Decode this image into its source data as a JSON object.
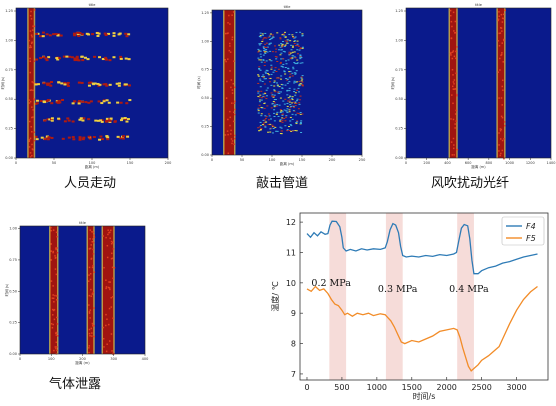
{
  "captions": [
    "人员走动",
    "敲击管道",
    "风吹扰动光纤",
    "气体泄露"
  ],
  "heatmap_panels": [
    {
      "id": "walking",
      "title": "title",
      "ylabel": "时间 (s)",
      "xlabel": "距离 (m)",
      "y_ticks": [
        "0.00",
        "0.25",
        "0.50",
        "0.75",
        "1.00",
        "1.25"
      ],
      "x_ticks": [
        "0",
        "50",
        "100",
        "150",
        "200"
      ],
      "vertical_bands": [
        [
          0.08,
          0.12
        ]
      ],
      "horizontal_events": [
        0.17,
        0.33,
        0.5,
        0.62,
        0.74,
        0.86
      ]
    },
    {
      "id": "knocking",
      "title": "title",
      "ylabel": "时间 (s)",
      "xlabel": "距离 (m)",
      "y_ticks": [
        "0.00",
        "0.25",
        "0.50",
        "0.75",
        "1.00",
        "1.25"
      ],
      "x_ticks": [
        "0",
        "50",
        "100",
        "150",
        "200",
        "250"
      ],
      "vertical_bands": [
        [
          0.08,
          0.15
        ]
      ],
      "noise_region": [
        0.3,
        0.6,
        0.15,
        0.85
      ]
    },
    {
      "id": "wind",
      "title": "title",
      "ylabel": "时间 (s)",
      "xlabel": "距离 (m)",
      "y_ticks": [
        "0.00",
        "0.25",
        "0.50",
        "0.75",
        "1.00",
        "1.25"
      ],
      "x_ticks": [
        "0",
        "200",
        "400",
        "600",
        "800",
        "1000",
        "1200",
        "1400"
      ],
      "vertical_bands": [
        [
          0.3,
          0.35
        ],
        [
          0.63,
          0.68
        ]
      ]
    },
    {
      "id": "leak",
      "title": "title",
      "ylabel": "时间 (s)",
      "xlabel": "距离 (m)",
      "y_ticks": [
        "0.00",
        "0.25",
        "0.50",
        "0.75",
        "1.00"
      ],
      "x_ticks": [
        "0",
        "100",
        "200",
        "300",
        "400"
      ],
      "vertical_bands": [
        [
          0.24,
          0.3
        ],
        [
          0.54,
          0.59
        ],
        [
          0.66,
          0.75
        ]
      ]
    }
  ],
  "chart_data": {
    "type": "line",
    "title": "",
    "xlabel": "时间/s",
    "ylabel": "温度/ ℃",
    "xlim": [
      -100,
      3450
    ],
    "ylim": [
      6.8,
      12.3
    ],
    "x_ticks": [
      0,
      500,
      1000,
      1500,
      2000,
      2500,
      3000
    ],
    "y_ticks": [
      7,
      8,
      9,
      10,
      11,
      12
    ],
    "legend_position": "top-right",
    "shaded_regions": [
      {
        "x0": 320,
        "x1": 560,
        "label": "0.2 MPa"
      },
      {
        "x0": 1130,
        "x1": 1370,
        "label": "0.3 MPa"
      },
      {
        "x0": 2150,
        "x1": 2390,
        "label": "0.4 MPa"
      }
    ],
    "series": [
      {
        "name": "F4",
        "color": "#2E7BB6",
        "points": [
          [
            0,
            11.62
          ],
          [
            50,
            11.5
          ],
          [
            100,
            11.65
          ],
          [
            150,
            11.55
          ],
          [
            200,
            11.68
          ],
          [
            260,
            11.6
          ],
          [
            300,
            11.62
          ],
          [
            330,
            11.9
          ],
          [
            360,
            12.03
          ],
          [
            420,
            12.02
          ],
          [
            470,
            11.85
          ],
          [
            500,
            11.5
          ],
          [
            520,
            11.15
          ],
          [
            560,
            11.05
          ],
          [
            620,
            11.1
          ],
          [
            700,
            11.05
          ],
          [
            780,
            11.12
          ],
          [
            860,
            11.08
          ],
          [
            950,
            11.12
          ],
          [
            1050,
            11.1
          ],
          [
            1120,
            11.15
          ],
          [
            1150,
            11.35
          ],
          [
            1190,
            11.75
          ],
          [
            1230,
            11.95
          ],
          [
            1270,
            11.9
          ],
          [
            1310,
            11.65
          ],
          [
            1340,
            11.2
          ],
          [
            1370,
            10.9
          ],
          [
            1420,
            10.85
          ],
          [
            1500,
            10.88
          ],
          [
            1600,
            10.85
          ],
          [
            1700,
            10.9
          ],
          [
            1800,
            10.87
          ],
          [
            1900,
            10.93
          ],
          [
            2000,
            10.9
          ],
          [
            2100,
            10.95
          ],
          [
            2140,
            11.0
          ],
          [
            2170,
            11.35
          ],
          [
            2210,
            11.8
          ],
          [
            2250,
            11.92
          ],
          [
            2300,
            11.88
          ],
          [
            2330,
            11.45
          ],
          [
            2360,
            10.75
          ],
          [
            2390,
            10.3
          ],
          [
            2450,
            10.3
          ],
          [
            2500,
            10.4
          ],
          [
            2600,
            10.5
          ],
          [
            2700,
            10.55
          ],
          [
            2800,
            10.65
          ],
          [
            2900,
            10.7
          ],
          [
            3000,
            10.78
          ],
          [
            3100,
            10.85
          ],
          [
            3200,
            10.9
          ],
          [
            3300,
            10.95
          ]
        ]
      },
      {
        "name": "F5",
        "color": "#F28C28",
        "points": [
          [
            0,
            9.8
          ],
          [
            60,
            9.72
          ],
          [
            120,
            9.88
          ],
          [
            180,
            9.75
          ],
          [
            240,
            9.8
          ],
          [
            300,
            9.65
          ],
          [
            350,
            9.45
          ],
          [
            400,
            9.3
          ],
          [
            450,
            9.25
          ],
          [
            500,
            9.1
          ],
          [
            540,
            8.95
          ],
          [
            580,
            9.0
          ],
          [
            650,
            8.9
          ],
          [
            720,
            9.0
          ],
          [
            800,
            8.95
          ],
          [
            880,
            9.0
          ],
          [
            950,
            8.92
          ],
          [
            1050,
            8.98
          ],
          [
            1120,
            8.95
          ],
          [
            1160,
            8.85
          ],
          [
            1200,
            8.75
          ],
          [
            1250,
            8.55
          ],
          [
            1300,
            8.3
          ],
          [
            1350,
            8.05
          ],
          [
            1400,
            8.0
          ],
          [
            1500,
            8.1
          ],
          [
            1600,
            8.05
          ],
          [
            1700,
            8.15
          ],
          [
            1800,
            8.25
          ],
          [
            1900,
            8.4
          ],
          [
            2000,
            8.45
          ],
          [
            2100,
            8.5
          ],
          [
            2150,
            8.45
          ],
          [
            2190,
            8.2
          ],
          [
            2230,
            7.85
          ],
          [
            2270,
            7.55
          ],
          [
            2310,
            7.25
          ],
          [
            2350,
            7.1
          ],
          [
            2400,
            7.2
          ],
          [
            2450,
            7.3
          ],
          [
            2500,
            7.45
          ],
          [
            2600,
            7.6
          ],
          [
            2700,
            7.8
          ],
          [
            2750,
            7.9
          ],
          [
            2800,
            8.15
          ],
          [
            2900,
            8.65
          ],
          [
            3000,
            9.1
          ],
          [
            3100,
            9.45
          ],
          [
            3200,
            9.7
          ],
          [
            3300,
            9.88
          ]
        ]
      }
    ]
  }
}
